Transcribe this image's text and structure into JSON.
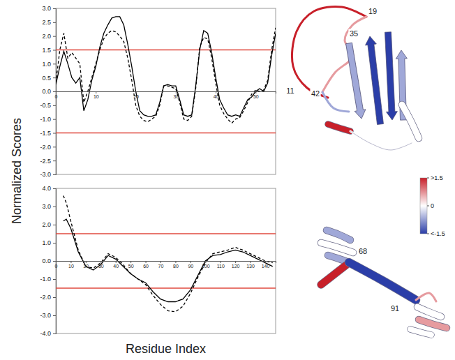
{
  "chart_data": [
    {
      "type": "line",
      "x": [
        0,
        1,
        2,
        3,
        4,
        5,
        6,
        7,
        8,
        9,
        10,
        11,
        12,
        13,
        14,
        15,
        16,
        17,
        18,
        19,
        20,
        21,
        22,
        23,
        24,
        25,
        26,
        27,
        28,
        29,
        30,
        31,
        32,
        33,
        34,
        35,
        36,
        37,
        38,
        39,
        40,
        41,
        42,
        43,
        44,
        45,
        46,
        47,
        48,
        49,
        50,
        51,
        52,
        53,
        54,
        55
      ],
      "xlim": [
        0,
        55
      ],
      "xticks": [
        0,
        10,
        20,
        30,
        40,
        50
      ],
      "ylim": [
        -3,
        3
      ],
      "yticks": [
        {
          "value": 3,
          "label": "3.0"
        },
        {
          "value": 2.5,
          "label": "2.5"
        },
        {
          "value": 2,
          "label": "2.0"
        },
        {
          "value": 1.5,
          "label": "1.5"
        },
        {
          "value": 1,
          "label": "1.0"
        },
        {
          "value": 0.5,
          "label": "0.5"
        },
        {
          "value": 0,
          "label": "0.0"
        },
        {
          "value": -0.5,
          "label": "-0.5"
        },
        {
          "value": -1,
          "label": "-1.0"
        },
        {
          "value": -1.5,
          "label": "-1.5"
        },
        {
          "value": -2,
          "label": "-2.0"
        },
        {
          "value": -2.5,
          "label": "-2.5"
        },
        {
          "value": -3,
          "label": "-3.0"
        }
      ],
      "hlines": [
        {
          "value": 1.5,
          "color": "#e04a3f"
        },
        {
          "value": -1.5,
          "color": "#e04a3f"
        }
      ],
      "series": [
        {
          "color": "#000000",
          "line_style": "solid",
          "values": [
            0.25,
            0.9,
            1.45,
            1.0,
            0.5,
            0.3,
            0.5,
            -0.7,
            -0.3,
            0.4,
            0.9,
            1.6,
            2.1,
            2.4,
            2.65,
            2.7,
            2.7,
            2.4,
            1.7,
            0.9,
            0.0,
            -0.7,
            -0.85,
            -0.9,
            -0.9,
            -0.85,
            -0.4,
            0.2,
            0.25,
            0.2,
            0.2,
            -0.3,
            -0.85,
            -0.9,
            -0.85,
            0.2,
            1.5,
            2.2,
            2.1,
            1.4,
            0.5,
            -0.3,
            -0.6,
            -0.85,
            -0.9,
            -0.85,
            -0.9,
            -0.6,
            -0.3,
            -0.2,
            0.0,
            0.1,
            0.0,
            0.3,
            1.3,
            2.1
          ]
        },
        {
          "color": "#000000",
          "line_style": "dashed",
          "values": [
            0.3,
            1.5,
            2.1,
            1.2,
            1.4,
            1.2,
            1.0,
            -0.4,
            0.0,
            0.5,
            1.0,
            1.5,
            1.9,
            2.1,
            2.2,
            2.15,
            2.0,
            1.8,
            1.2,
            0.4,
            -0.5,
            -0.9,
            -1.05,
            -1.1,
            -1.0,
            -0.9,
            -0.5,
            0.2,
            0.2,
            0.15,
            0.1,
            -0.4,
            -1.0,
            -1.05,
            -0.9,
            0.1,
            1.6,
            1.95,
            1.9,
            1.2,
            0.3,
            -0.5,
            -0.8,
            -1.0,
            -1.15,
            -1.0,
            -0.95,
            -0.7,
            -0.4,
            -0.1,
            0.05,
            0.0,
            0.05,
            0.4,
            1.5,
            2.3
          ]
        }
      ]
    },
    {
      "type": "line",
      "x": [
        5,
        7,
        10,
        15,
        20,
        25,
        30,
        35,
        40,
        45,
        50,
        55,
        60,
        65,
        70,
        75,
        80,
        85,
        90,
        95,
        100,
        105,
        110,
        115,
        120,
        125,
        130,
        135,
        140,
        145
      ],
      "xlim": [
        0,
        147
      ],
      "xticks": [
        0,
        10,
        20,
        30,
        40,
        50,
        60,
        70,
        80,
        90,
        100,
        110,
        120,
        130,
        140
      ],
      "ylim": [
        -4,
        4
      ],
      "yticks": [
        {
          "value": 4,
          "label": "4.0"
        },
        {
          "value": 3,
          "label": "3.0"
        },
        {
          "value": 2,
          "label": "2.0"
        },
        {
          "value": 1,
          "label": "1.0"
        },
        {
          "value": 0,
          "label": "0.0"
        },
        {
          "value": -1,
          "label": "-1.0"
        },
        {
          "value": -2,
          "label": "-2.0"
        },
        {
          "value": -3,
          "label": "-3.0"
        },
        {
          "value": -4,
          "label": "-4.0"
        }
      ],
      "hlines": [
        {
          "value": 1.5,
          "color": "#e04a3f"
        },
        {
          "value": -1.5,
          "color": "#e04a3f"
        }
      ],
      "series": [
        {
          "color": "#000000",
          "line_style": "solid",
          "values": [
            2.2,
            2.3,
            1.8,
            0.5,
            -0.3,
            -0.5,
            -0.2,
            0.3,
            0.1,
            -0.3,
            -0.7,
            -1.0,
            -1.2,
            -1.7,
            -2.1,
            -2.25,
            -2.25,
            -2.1,
            -1.6,
            -0.8,
            0.0,
            0.3,
            0.35,
            0.5,
            0.6,
            0.5,
            0.3,
            0.1,
            -0.1,
            -0.3
          ]
        },
        {
          "color": "#000000",
          "line_style": "dashed",
          "values": [
            3.6,
            3.2,
            2.2,
            0.6,
            -0.3,
            -0.4,
            -0.1,
            0.4,
            0.2,
            -0.2,
            -0.7,
            -1.0,
            -1.3,
            -1.9,
            -2.4,
            -2.75,
            -2.8,
            -2.5,
            -1.8,
            -0.9,
            -0.1,
            0.4,
            0.5,
            0.6,
            0.75,
            0.6,
            0.4,
            0.2,
            0.0,
            -0.1
          ]
        }
      ]
    }
  ],
  "y_label": "Normalized Scores",
  "x_label": "Residue Index",
  "structures": [
    {
      "labels": [
        "19",
        "35",
        "11",
        "42"
      ]
    },
    {
      "labels": [
        "68",
        "91"
      ]
    }
  ],
  "color_bar": {
    "range": [
      -1.5,
      1.5
    ],
    "ticks": [
      {
        "value": 1.5,
        "label": ">1.5"
      },
      0,
      {
        "value": -1.5,
        "label": "<-1.5"
      }
    ],
    "colors": [
      "#2b3ea8",
      "#ffffff",
      "#c8202a"
    ]
  }
}
